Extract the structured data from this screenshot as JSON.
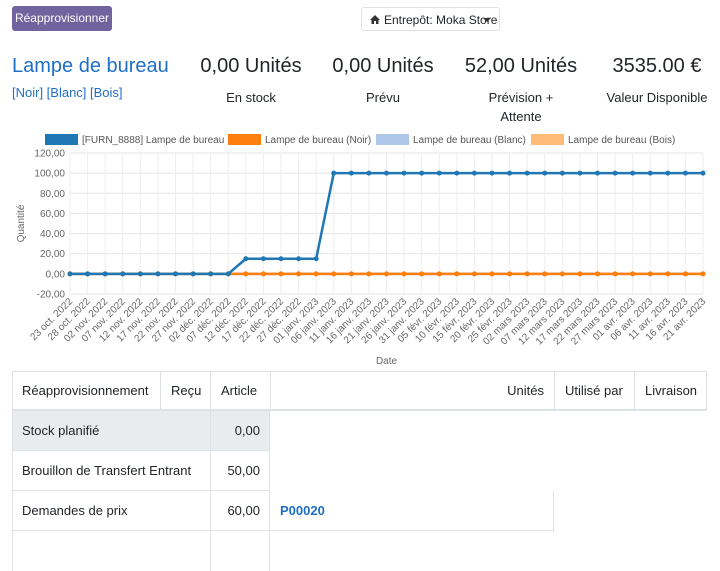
{
  "toolbar": {
    "button": "Réapprovisionner",
    "warehouse": "Entrepôt: Moka Store"
  },
  "product": {
    "name": "Lampe de bureau",
    "variants": "[Noir] [Blanc] [Bois]"
  },
  "stats": [
    {
      "value": "0,00 Unités",
      "label": "En stock"
    },
    {
      "value": "0,00 Unités",
      "label": "Prévu"
    },
    {
      "value": "52,00 Unités",
      "label": "Prévision + Attente"
    },
    {
      "value": "3535.00 €",
      "label": "Valeur Disponible"
    }
  ],
  "chart_data": {
    "type": "line",
    "x_label": "Date",
    "y_label": "Quantité",
    "categories": [
      "23 oct. 2022",
      "28 oct. 2022",
      "02 nov. 2022",
      "07 nov. 2022",
      "12 nov. 2022",
      "17 nov. 2022",
      "22 nov. 2022",
      "27 nov. 2022",
      "02 déc. 2022",
      "07 déc. 2022",
      "12 déc. 2022",
      "17 déc. 2022",
      "22 déc. 2022",
      "27 déc. 2022",
      "01 janv. 2023",
      "06 janv. 2023",
      "11 janv. 2023",
      "16 janv. 2023",
      "21 janv. 2023",
      "26 janv. 2023",
      "31 janv. 2023",
      "05 févr. 2023",
      "10 févr. 2023",
      "15 févr. 2023",
      "20 févr. 2023",
      "25 févr. 2023",
      "02 mars 2023",
      "07 mars 2023",
      "12 mars 2023",
      "17 mars 2023",
      "22 mars 2023",
      "27 mars 2023",
      "01 avr. 2023",
      "06 avr. 2023",
      "11 avr. 2023",
      "16 avr. 2023",
      "21 avr. 2023"
    ],
    "series": [
      {
        "name": "[FURN_8888] Lampe de bureau",
        "color": "#1f77b4",
        "values": [
          0,
          0,
          0,
          0,
          0,
          0,
          0,
          0,
          0,
          0,
          15,
          15,
          15,
          15,
          15,
          100,
          100,
          100,
          100,
          100,
          100,
          100,
          100,
          100,
          100,
          100,
          100,
          100,
          100,
          100,
          100,
          100,
          100,
          100,
          100,
          100,
          100
        ]
      },
      {
        "name": "Lampe de bureau (Noir)",
        "color": "#ff7f0e",
        "values": [
          0,
          0,
          0,
          0,
          0,
          0,
          0,
          0,
          0,
          0,
          0,
          0,
          0,
          0,
          0,
          0,
          0,
          0,
          0,
          0,
          0,
          0,
          0,
          0,
          0,
          0,
          0,
          0,
          0,
          0,
          0,
          0,
          0,
          0,
          0,
          0,
          0
        ]
      },
      {
        "name": "Lampe de bureau (Blanc)",
        "color": "#aec7e8",
        "values": [
          0,
          0,
          0,
          0,
          0,
          0,
          0,
          0,
          0,
          0,
          0,
          0,
          0,
          0,
          0,
          0,
          0,
          0,
          0,
          0,
          0,
          0,
          0,
          0,
          0,
          0,
          0,
          0,
          0,
          0,
          0,
          0,
          0,
          0,
          0,
          0,
          0
        ]
      },
      {
        "name": "Lampe de bureau (Bois)",
        "color": "#ffbb78",
        "values": [
          0,
          0,
          0,
          0,
          0,
          0,
          0,
          0,
          0,
          0,
          0,
          0,
          0,
          0,
          0,
          0,
          0,
          0,
          0,
          0,
          0,
          0,
          0,
          0,
          0,
          0,
          0,
          0,
          0,
          0,
          0,
          0,
          0,
          0,
          0,
          0,
          0
        ]
      }
    ],
    "ylim": [
      -20,
      120
    ],
    "yticks": [
      {
        "value": -20,
        "label": "-20,00"
      },
      {
        "value": 0,
        "label": "0,00"
      },
      {
        "value": 20,
        "label": "20,00"
      },
      {
        "value": 40,
        "label": "40,00"
      },
      {
        "value": 60,
        "label": "60,00"
      },
      {
        "value": 80,
        "label": "80,00"
      },
      {
        "value": 100,
        "label": "100,00"
      },
      {
        "value": 120,
        "label": "120,00"
      }
    ],
    "grid": true
  },
  "table": {
    "headers": [
      "Réapprovisionnement",
      "Reçu",
      "Article",
      "Unités",
      "Utilisé par",
      "Livraison"
    ],
    "rows": [
      [
        "Stock planifié",
        "0,00"
      ],
      [
        "Brouillon de Transfert Entrant",
        "50,00"
      ],
      [
        "Demandes de prix",
        "60,00",
        "P00020"
      ]
    ]
  }
}
